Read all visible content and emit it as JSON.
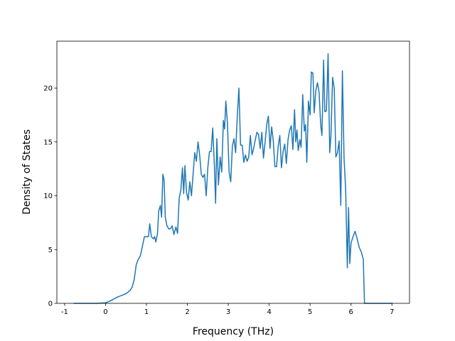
{
  "chart_data": {
    "type": "line",
    "xlabel": "Frequency (THz)",
    "ylabel": "Density of States",
    "color": "#1f77b4",
    "xlim": [
      -1.19,
      7.43
    ],
    "ylim": [
      0,
      24.36
    ],
    "xticks": [
      -1,
      0,
      1,
      2,
      3,
      4,
      5,
      6,
      7
    ],
    "yticks": [
      0,
      5,
      10,
      15,
      20
    ],
    "x": [
      -0.78,
      -0.2,
      0,
      0.1,
      0.2,
      0.3,
      0.4,
      0.5,
      0.6,
      0.65,
      0.7,
      0.75,
      0.8,
      0.85,
      0.9,
      0.95,
      1.0,
      1.05,
      1.08,
      1.12,
      1.17,
      1.2,
      1.23,
      1.27,
      1.3,
      1.34,
      1.37,
      1.4,
      1.43,
      1.46,
      1.5,
      1.55,
      1.6,
      1.63,
      1.67,
      1.72,
      1.76,
      1.8,
      1.84,
      1.88,
      1.91,
      1.94,
      1.98,
      2.02,
      2.06,
      2.1,
      2.14,
      2.18,
      2.22,
      2.26,
      2.3,
      2.34,
      2.38,
      2.42,
      2.46,
      2.5,
      2.54,
      2.58,
      2.62,
      2.66,
      2.69,
      2.72,
      2.76,
      2.8,
      2.84,
      2.88,
      2.91,
      2.94,
      2.98,
      3.02,
      3.06,
      3.1,
      3.14,
      3.18,
      3.22,
      3.26,
      3.3,
      3.34,
      3.38,
      3.42,
      3.46,
      3.5,
      3.54,
      3.58,
      3.62,
      3.66,
      3.7,
      3.74,
      3.78,
      3.82,
      3.86,
      3.9,
      3.94,
      3.98,
      4.02,
      4.06,
      4.1,
      4.14,
      4.18,
      4.22,
      4.26,
      4.3,
      4.34,
      4.38,
      4.42,
      4.46,
      4.5,
      4.54,
      4.58,
      4.62,
      4.65,
      4.68,
      4.71,
      4.75,
      4.78,
      4.82,
      4.86,
      4.89,
      4.92,
      4.96,
      5.0,
      5.03,
      5.07,
      5.1,
      5.14,
      5.18,
      5.22,
      5.26,
      5.29,
      5.33,
      5.36,
      5.4,
      5.44,
      5.48,
      5.51,
      5.55,
      5.59,
      5.63,
      5.67,
      5.71,
      5.75,
      5.79,
      5.83,
      5.87,
      5.91,
      5.94,
      5.97,
      6.0,
      6.05,
      6.1,
      6.15,
      6.2,
      6.25,
      6.3,
      6.33,
      7.02
    ],
    "values": [
      0,
      0,
      0.05,
      0.2,
      0.4,
      0.6,
      0.75,
      0.9,
      1.2,
      1.5,
      2.2,
      3.6,
      4.1,
      4.4,
      5.3,
      6.2,
      6.2,
      6.2,
      7.4,
      6.2,
      6.0,
      6.2,
      5.7,
      6.5,
      8.6,
      9.1,
      8.0,
      12.0,
      11.5,
      8.0,
      7.2,
      6.9,
      7.0,
      7.2,
      6.4,
      7.1,
      6.5,
      9.8,
      10.5,
      12.6,
      10.2,
      12.8,
      10.3,
      9.6,
      11.3,
      10.0,
      12.0,
      14.0,
      13.2,
      15.0,
      13.8,
      12.0,
      11.7,
      12.0,
      10.0,
      12.6,
      14.1,
      14.1,
      16.3,
      12.8,
      9.3,
      15.3,
      11.0,
      13.6,
      12.2,
      17.0,
      16.2,
      18.8,
      16.7,
      12.2,
      11.3,
      14.6,
      15.3,
      14.0,
      17.4,
      20.0,
      14.7,
      14.7,
      13.1,
      13.8,
      13.2,
      13.6,
      15.6,
      13.8,
      14.4,
      15.2,
      15.9,
      15.7,
      14.4,
      15.9,
      13.5,
      15.0,
      16.6,
      17.4,
      14.4,
      16.4,
      15.1,
      12.7,
      12.7,
      14.6,
      15.6,
      12.6,
      14.1,
      14.8,
      13.0,
      15.2,
      16.1,
      16.5,
      14.3,
      18.0,
      15.0,
      16.1,
      14.2,
      15.2,
      14.5,
      19.4,
      16.0,
      16.6,
      13.1,
      18.8,
      17.5,
      21.5,
      21.4,
      17.7,
      19.8,
      20.5,
      19.6,
      16.5,
      15.6,
      22.6,
      17.8,
      17.9,
      23.2,
      14.0,
      15.6,
      21.0,
      20.0,
      13.6,
      14.0,
      15.1,
      9.1,
      21.6,
      13.5,
      10.5,
      3.3,
      8.9,
      3.7,
      5.6,
      6.2,
      6.7,
      6.0,
      5.2,
      4.8,
      4.1,
      0,
      0
    ]
  }
}
